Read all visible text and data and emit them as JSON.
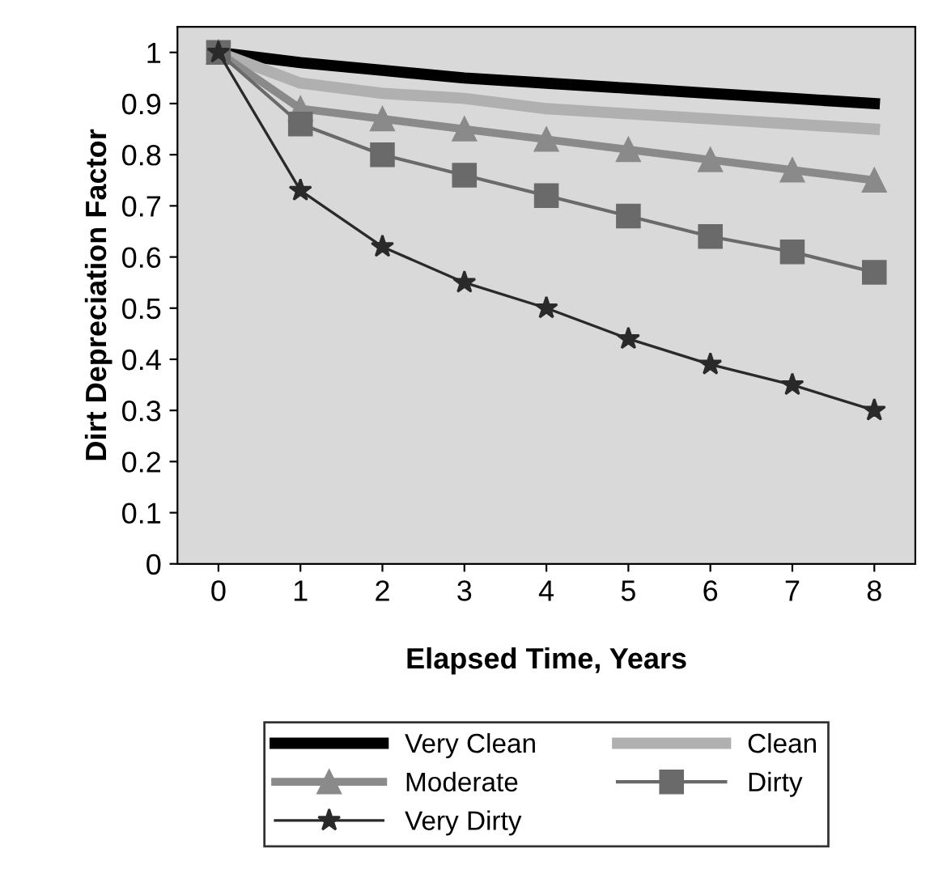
{
  "chart_data": {
    "type": "line",
    "xlabel": "Elapsed Time, Years",
    "ylabel": "Dirt Depreciation Factor",
    "x": [
      0,
      1,
      2,
      3,
      4,
      5,
      6,
      7,
      8
    ],
    "series": [
      {
        "name": "Very Clean",
        "color": "#000000",
        "marker": "none",
        "values": [
          1,
          0.98,
          0.965,
          0.95,
          0.94,
          0.93,
          0.92,
          0.91,
          0.9
        ]
      },
      {
        "name": "Clean",
        "color": "#b0b0b0",
        "marker": "none",
        "values": [
          1,
          0.94,
          0.92,
          0.91,
          0.89,
          0.88,
          0.87,
          0.86,
          0.85
        ]
      },
      {
        "name": "Moderate",
        "color": "#8a8a8a",
        "marker": "triangle",
        "values": [
          1,
          0.89,
          0.87,
          0.85,
          0.83,
          0.81,
          0.79,
          0.77,
          0.75
        ]
      },
      {
        "name": "Dirty",
        "color": "#6a6a6a",
        "marker": "square",
        "values": [
          1,
          0.86,
          0.8,
          0.76,
          0.72,
          0.68,
          0.64,
          0.61,
          0.57
        ]
      },
      {
        "name": "Very Dirty",
        "color": "#2a2a2a",
        "marker": "star",
        "values": [
          1,
          0.73,
          0.62,
          0.55,
          0.5,
          0.44,
          0.39,
          0.35,
          0.3
        ]
      }
    ],
    "xlim": [
      -0.5,
      8.5
    ],
    "xticks": [
      0,
      1,
      2,
      3,
      4,
      5,
      6,
      7,
      8
    ],
    "ylim": [
      0,
      1.05
    ],
    "yticks": [
      0,
      0.1,
      0.2,
      0.3,
      0.4,
      0.5,
      0.6,
      0.7,
      0.8,
      0.9,
      1
    ],
    "grid": false,
    "legend": "bottom"
  }
}
